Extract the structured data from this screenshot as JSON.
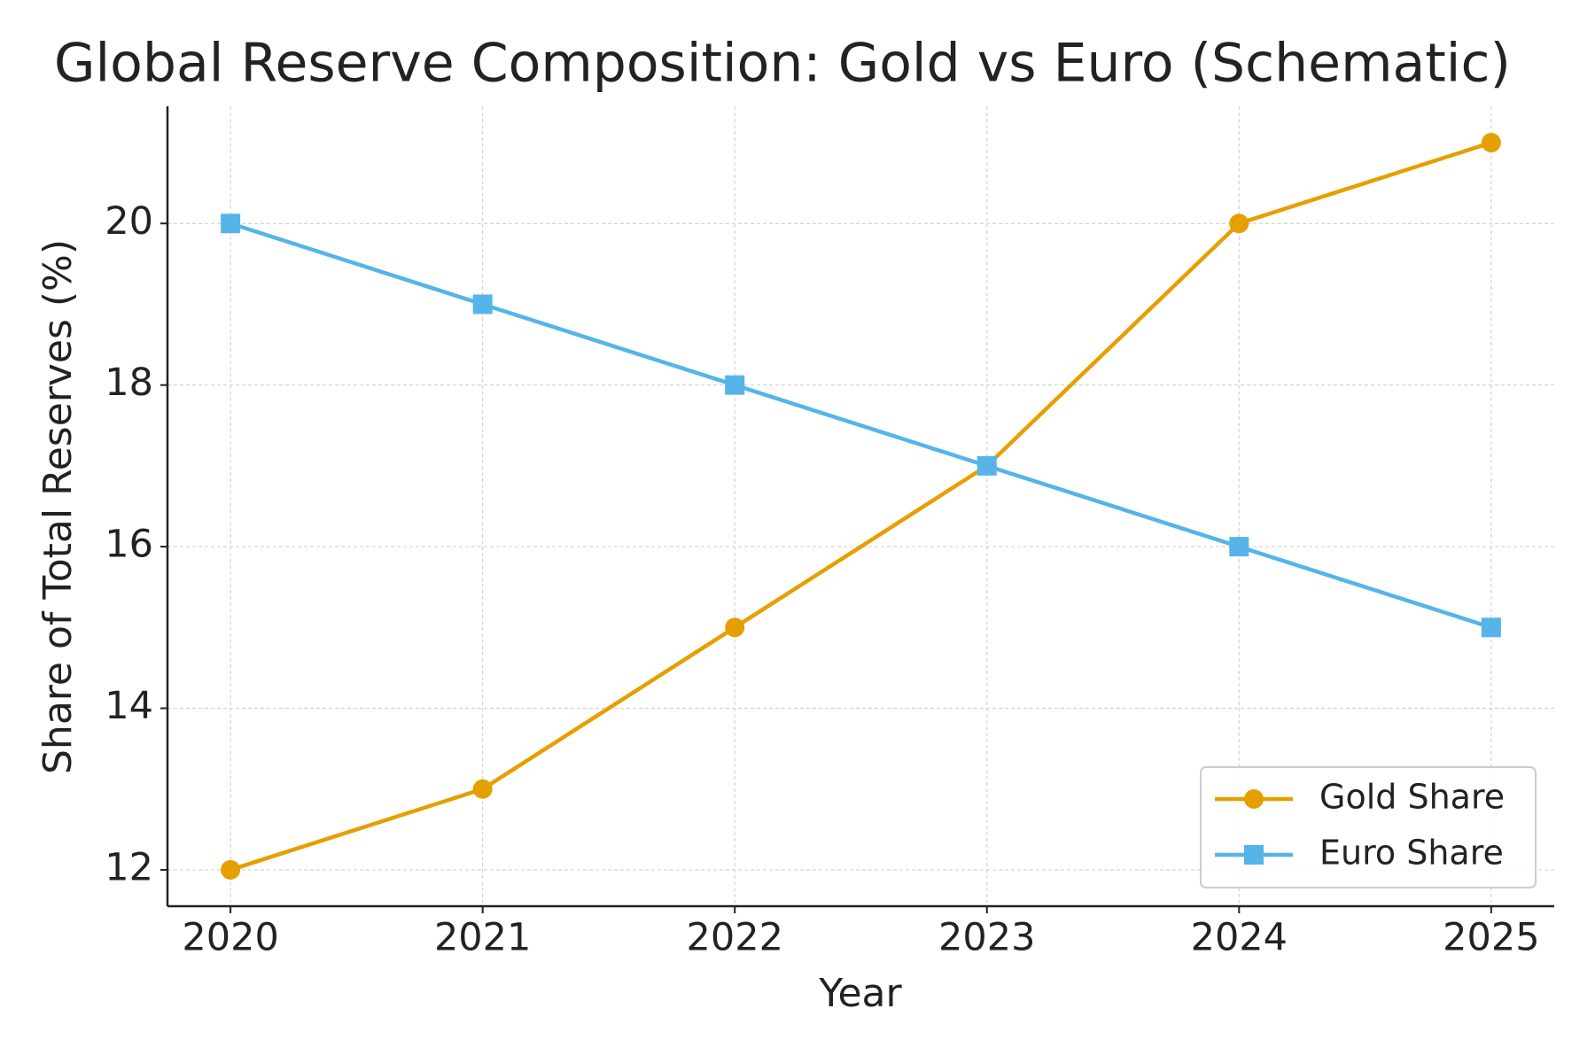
{
  "chart_data": {
    "type": "line",
    "title": "Global Reserve Composition: Gold vs Euro (Schematic)",
    "x_label": "Year",
    "y_label": "Share of Total Reserves (%)",
    "x": [
      2020,
      2021,
      2022,
      2023,
      2024,
      2025
    ],
    "series": [
      {
        "name": "Gold Share",
        "color": "#e69f00",
        "marker": "circle",
        "values": [
          12,
          13,
          15,
          17,
          20,
          21
        ]
      },
      {
        "name": "Euro Share",
        "color": "#56b4e9",
        "marker": "square",
        "values": [
          20,
          19,
          18,
          17,
          16,
          15
        ]
      }
    ],
    "xlim": [
      2019.75,
      2025.25
    ],
    "xticks": [
      2020,
      2021,
      2022,
      2023,
      2024,
      2025
    ],
    "ylim": [
      11.55,
      21.45
    ],
    "yticks": [
      12,
      14,
      16,
      18,
      20
    ],
    "grid": true,
    "legend": "lower right"
  }
}
